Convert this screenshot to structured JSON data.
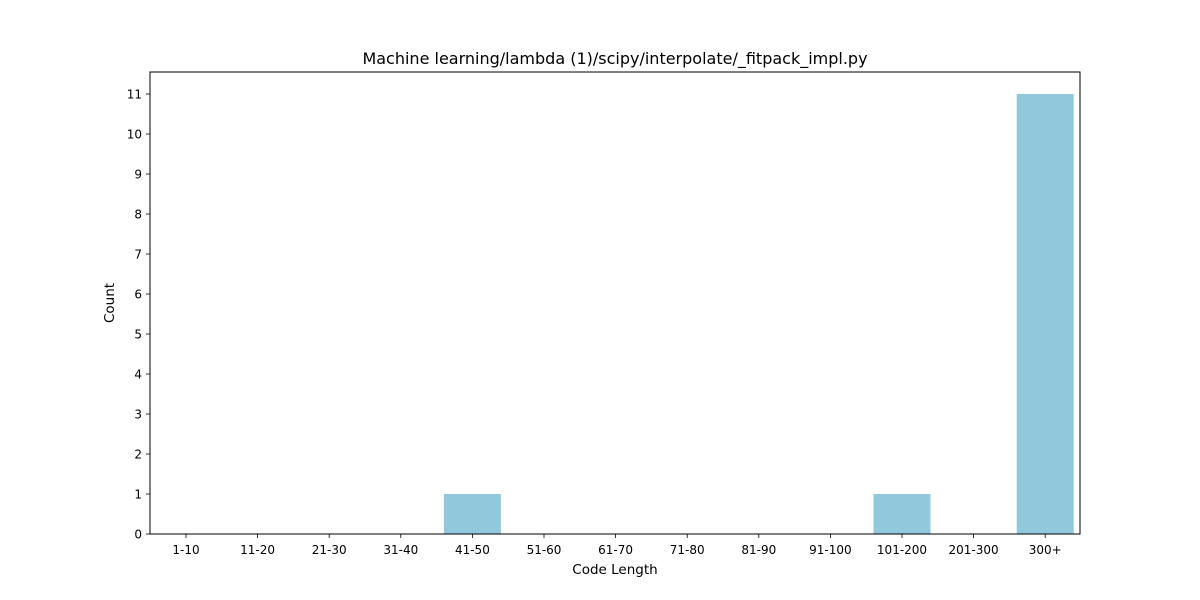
{
  "chart_data": {
    "type": "bar",
    "title": "Machine learning/lambda (1)/scipy/interpolate/_fitpack_impl.py",
    "xlabel": "Code Length",
    "ylabel": "Count",
    "categories": [
      "1-10",
      "11-20",
      "21-30",
      "31-40",
      "41-50",
      "51-60",
      "61-70",
      "71-80",
      "81-90",
      "91-100",
      "101-200",
      "201-300",
      "300+"
    ],
    "values": [
      0,
      0,
      0,
      0,
      1,
      0,
      0,
      0,
      0,
      0,
      1,
      0,
      11
    ],
    "yticks": [
      0,
      1,
      2,
      3,
      4,
      5,
      6,
      7,
      8,
      9,
      10,
      11
    ],
    "ylim": [
      0,
      11.55
    ],
    "bar_color": "#92c8dc",
    "grid": false,
    "legend": "none"
  }
}
